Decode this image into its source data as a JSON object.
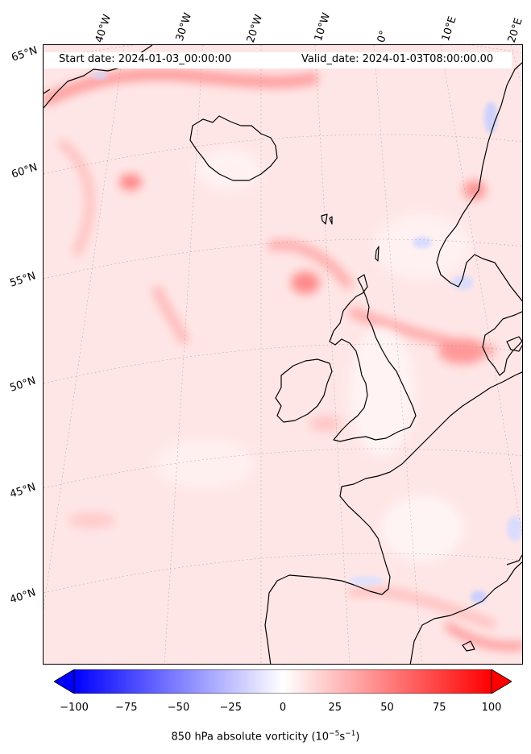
{
  "header": {
    "start_date": "Start date: 2024-01-03_00:00:00",
    "valid_date": "Valid_date: 2024-01-03T08:00:00.00"
  },
  "map": {
    "projection": "lambert-conformal",
    "field": "850 hPa absolute vorticity",
    "coastline_color": "#000000",
    "background_color": "#ffe8e8",
    "longitude_labels": [
      "40°W",
      "30°W",
      "20°W",
      "10°W",
      "0°",
      "10°E",
      "20°E"
    ],
    "latitude_labels": [
      "65°N",
      "60°N",
      "55°N",
      "50°N",
      "45°N",
      "40°N"
    ]
  },
  "colorbar": {
    "colormap": "bwr",
    "min": -100,
    "max": 100,
    "extend": "both",
    "ticks": [
      "−100",
      "−75",
      "−50",
      "−25",
      "0",
      "25",
      "50",
      "75",
      "100"
    ],
    "label": "850 hPa absolute vorticity (10",
    "label_exp1": "−5",
    "label_mid": "s",
    "label_exp2": "−1",
    "label_end": ")",
    "low_color": "#0000ff",
    "mid_color": "#ffffff",
    "high_color": "#ff0000"
  }
}
